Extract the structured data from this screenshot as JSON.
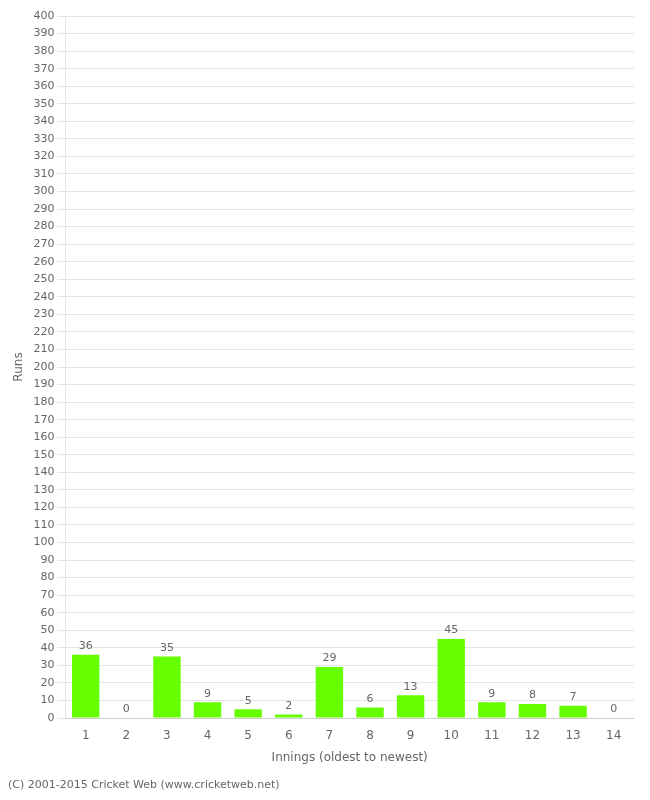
{
  "chart_data": {
    "type": "bar",
    "categories": [
      "1",
      "2",
      "3",
      "4",
      "5",
      "6",
      "7",
      "8",
      "9",
      "10",
      "11",
      "12",
      "13",
      "14"
    ],
    "values": [
      36,
      0,
      35,
      9,
      5,
      2,
      29,
      6,
      13,
      45,
      9,
      8,
      7,
      0
    ],
    "color": "#66ff00",
    "xlabel": "Innings (oldest to newest)",
    "ylabel": "Runs",
    "footer": "(C) 2001-2015 Cricket Web (www.cricketweb.net)",
    "ylim": [
      0,
      400
    ],
    "yticks": [
      0,
      10,
      20,
      30,
      40,
      50,
      60,
      70,
      80,
      90,
      100,
      110,
      120,
      130,
      140,
      150,
      160,
      170,
      180,
      190,
      200,
      210,
      220,
      230,
      240,
      250,
      260,
      270,
      280,
      290,
      300,
      310,
      320,
      330,
      340,
      350,
      360,
      370,
      380,
      390,
      400
    ],
    "grid": true,
    "data_labels": true
  }
}
